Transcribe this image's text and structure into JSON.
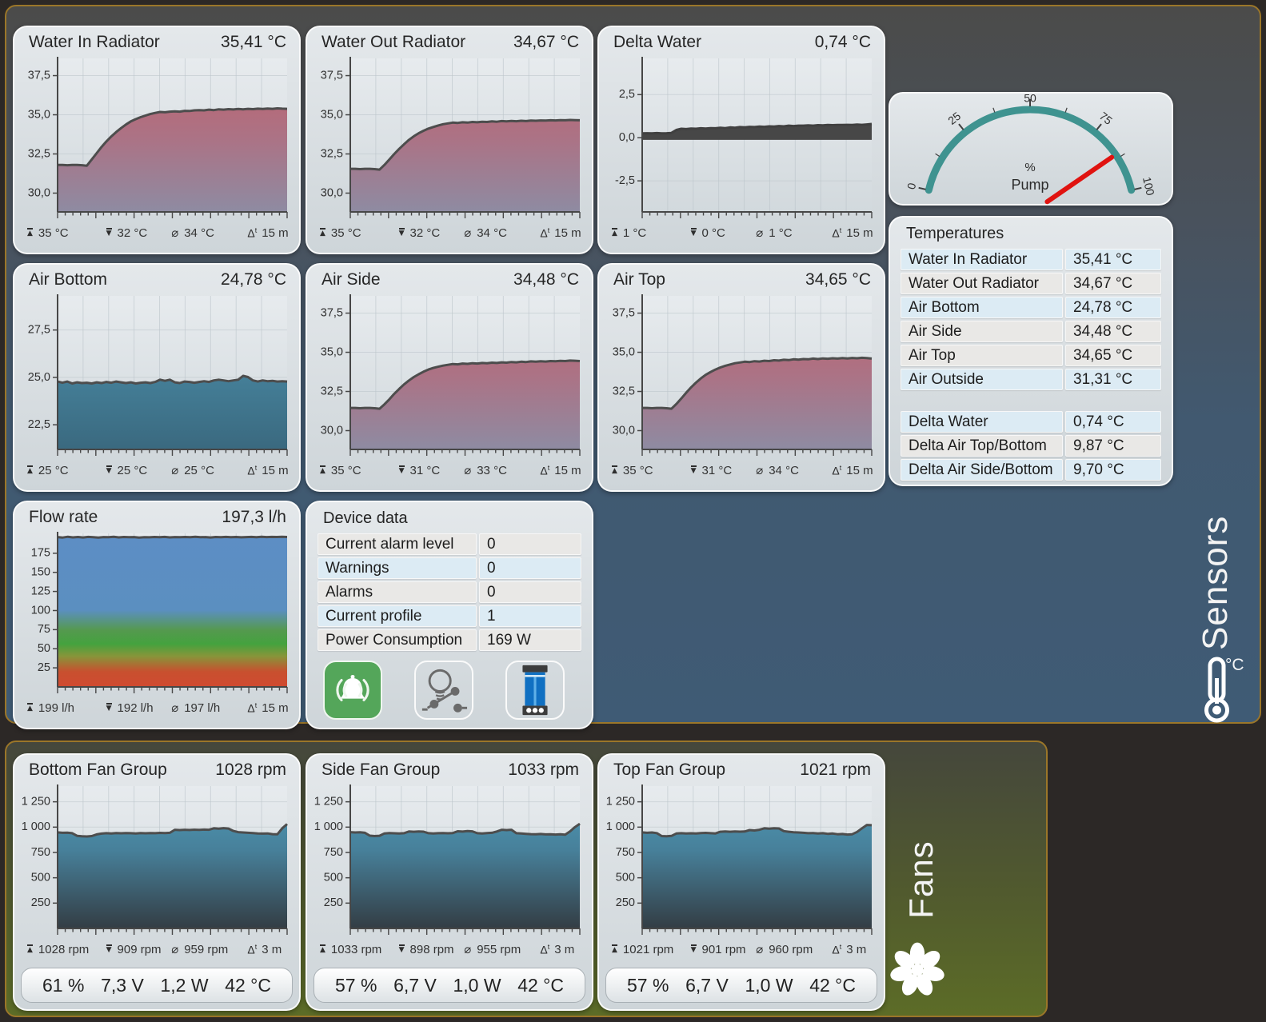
{
  "palettes": {
    "water": {
      "fill": [
        [
          0,
          "#c2606b"
        ],
        [
          0.55,
          "#aa7487"
        ],
        [
          1,
          "#8e8ba2"
        ]
      ],
      "stroke": "#4d4d4d"
    },
    "air": {
      "fill": [
        [
          0,
          "#5097b3"
        ],
        [
          1,
          "#3a697f"
        ]
      ],
      "stroke": "#4d4d4d"
    },
    "delta": {
      "fill": [
        [
          0,
          "#474747"
        ],
        [
          1,
          "#474747"
        ]
      ],
      "stroke": "#404040"
    },
    "flow": {
      "fill": [
        [
          0,
          "#5d8ec5"
        ],
        [
          0.5,
          "#5b8fc0"
        ],
        [
          0.63,
          "#55994f"
        ],
        [
          0.72,
          "#44a23e"
        ],
        [
          0.8,
          "#87953a"
        ],
        [
          0.9,
          "#c8502f"
        ],
        [
          1,
          "#d04a30"
        ]
      ],
      "stroke": "#4d4d4d"
    },
    "fan": {
      "fill": [
        [
          0,
          "#4f9cba"
        ],
        [
          0.45,
          "#47809a"
        ],
        [
          1,
          "#333d44"
        ]
      ],
      "stroke": "#4d4d4d"
    }
  },
  "sensors_section": {
    "section_label": "Sensors",
    "section_unit": "°C",
    "charts": [
      {
        "title": "Water In Radiator",
        "value": "35,41 °C",
        "type": "area",
        "palette": "water",
        "ylim": [
          28.8,
          38.6
        ],
        "yticks": [
          37.5,
          35.0,
          32.5,
          30.0
        ],
        "ytick_labels": [
          "37,5",
          "35,0",
          "32,5",
          "30,0"
        ],
        "stats": {
          "max": "35 °C",
          "min": "32 °C",
          "avg": "34 °C",
          "dt": "15 m"
        },
        "points": [
          31.8,
          31.8,
          31.78,
          31.8,
          31.8,
          31.78,
          31.75,
          32.15,
          32.55,
          32.95,
          33.3,
          33.62,
          33.9,
          34.15,
          34.38,
          34.58,
          34.72,
          34.85,
          34.95,
          35.05,
          35.12,
          35.18,
          35.16,
          35.2,
          35.22,
          35.2,
          35.25,
          35.24,
          35.28,
          35.3,
          35.28,
          35.33,
          35.3,
          35.35,
          35.33,
          35.36,
          35.34,
          35.37,
          35.35,
          35.38,
          35.36,
          35.39,
          35.37,
          35.4,
          35.38,
          35.41,
          35.39,
          35.38
        ]
      },
      {
        "title": "Water Out Radiator",
        "value": "34,67 °C",
        "type": "area",
        "palette": "water",
        "ylim": [
          28.8,
          38.6
        ],
        "yticks": [
          37.5,
          35.0,
          32.5,
          30.0
        ],
        "ytick_labels": [
          "37,5",
          "35,0",
          "32,5",
          "30,0"
        ],
        "stats": {
          "max": "35 °C",
          "min": "32 °C",
          "avg": "34 °C",
          "dt": "15 m"
        },
        "points": [
          31.55,
          31.55,
          31.53,
          31.55,
          31.55,
          31.53,
          31.5,
          31.8,
          32.15,
          32.5,
          32.82,
          33.12,
          33.4,
          33.63,
          33.82,
          33.98,
          34.12,
          34.22,
          34.32,
          34.4,
          34.45,
          34.5,
          34.48,
          34.52,
          34.5,
          34.54,
          34.52,
          34.56,
          34.54,
          34.58,
          34.56,
          34.6,
          34.58,
          34.61,
          34.59,
          34.62,
          34.6,
          34.63,
          34.62,
          34.64,
          34.63,
          34.65,
          34.64,
          34.66,
          34.65,
          34.67,
          34.66,
          34.65
        ]
      },
      {
        "title": "Delta Water",
        "value": "0,74 °C",
        "type": "area",
        "palette": "delta",
        "baseline": -0.12,
        "ylim": [
          -4.3,
          4.6
        ],
        "yticks": [
          2.5,
          0,
          -2.5
        ],
        "ytick_labels": [
          "2,5",
          "0,0",
          "-2,5"
        ],
        "stats": {
          "max": "1 °C",
          "min": "0 °C",
          "avg": "1 °C",
          "dt": "15 m"
        },
        "points": [
          0.25,
          0.26,
          0.25,
          0.27,
          0.25,
          0.26,
          0.28,
          0.45,
          0.52,
          0.5,
          0.53,
          0.52,
          0.55,
          0.53,
          0.56,
          0.55,
          0.58,
          0.56,
          0.6,
          0.58,
          0.62,
          0.6,
          0.63,
          0.62,
          0.65,
          0.63,
          0.66,
          0.65,
          0.68,
          0.66,
          0.7,
          0.68,
          0.7,
          0.7,
          0.72,
          0.7,
          0.73,
          0.72,
          0.74,
          0.73,
          0.74,
          0.74,
          0.75,
          0.74,
          0.76,
          0.75,
          0.77,
          0.8
        ]
      },
      {
        "title": "Air Bottom",
        "value": "24,78 °C",
        "type": "area",
        "palette": "air",
        "ylim": [
          21.2,
          29.3
        ],
        "yticks": [
          27.5,
          25.0,
          22.5
        ],
        "ytick_labels": [
          "27,5",
          "25,0",
          "22,5"
        ],
        "stats": {
          "max": "25 °C",
          "min": "25 °C",
          "avg": "25 °C",
          "dt": "15 m"
        },
        "points": [
          24.78,
          24.72,
          24.78,
          24.68,
          24.74,
          24.7,
          24.72,
          24.68,
          24.74,
          24.7,
          24.76,
          24.72,
          24.78,
          24.74,
          24.7,
          24.74,
          24.68,
          24.72,
          24.74,
          24.7,
          24.76,
          24.88,
          24.82,
          24.88,
          24.74,
          24.7,
          24.78,
          24.76,
          24.72,
          24.76,
          24.8,
          24.76,
          24.84,
          24.88,
          24.84,
          24.8,
          24.84,
          24.88,
          25.08,
          25.02,
          24.84,
          24.78,
          24.84,
          24.8,
          24.82,
          24.78,
          24.8,
          24.78
        ]
      },
      {
        "title": "Air Side",
        "value": "34,48 °C",
        "type": "area",
        "palette": "water",
        "ylim": [
          28.8,
          38.6
        ],
        "yticks": [
          37.5,
          35.0,
          32.5,
          30.0
        ],
        "ytick_labels": [
          "37,5",
          "35,0",
          "32,5",
          "30,0"
        ],
        "stats": {
          "max": "35 °C",
          "min": "31 °C",
          "avg": "33 °C",
          "dt": "15 m"
        },
        "points": [
          31.45,
          31.45,
          31.43,
          31.45,
          31.45,
          31.43,
          31.4,
          31.68,
          32.0,
          32.35,
          32.66,
          32.95,
          33.2,
          33.42,
          33.6,
          33.76,
          33.9,
          34.0,
          34.08,
          34.15,
          34.2,
          34.25,
          34.23,
          34.28,
          34.26,
          34.3,
          34.28,
          34.32,
          34.3,
          34.34,
          34.32,
          34.36,
          34.34,
          34.38,
          34.36,
          34.4,
          34.38,
          34.42,
          34.4,
          34.43,
          34.41,
          34.44,
          34.43,
          34.45,
          34.44,
          34.47,
          34.46,
          34.44
        ]
      },
      {
        "title": "Air Top",
        "value": "34,65 °C",
        "type": "area",
        "palette": "water",
        "ylim": [
          28.8,
          38.6
        ],
        "yticks": [
          37.5,
          35.0,
          32.5,
          30.0
        ],
        "ytick_labels": [
          "37,5",
          "35,0",
          "32,5",
          "30,0"
        ],
        "stats": {
          "max": "35 °C",
          "min": "31 °C",
          "avg": "34 °C",
          "dt": "15 m"
        },
        "points": [
          31.45,
          31.45,
          31.43,
          31.45,
          31.45,
          31.43,
          31.4,
          31.7,
          32.05,
          32.42,
          32.76,
          33.06,
          33.33,
          33.56,
          33.74,
          33.9,
          34.03,
          34.14,
          34.22,
          34.3,
          34.35,
          34.4,
          34.38,
          34.43,
          34.41,
          34.46,
          34.44,
          34.49,
          34.47,
          34.52,
          34.5,
          34.55,
          34.53,
          34.57,
          34.55,
          34.6,
          34.57,
          34.61,
          34.59,
          34.62,
          34.6,
          34.63,
          34.61,
          34.64,
          34.62,
          34.65,
          34.63,
          34.6
        ]
      },
      {
        "title": "Flow rate",
        "value": "197,3 l/h",
        "type": "area",
        "palette": "flow",
        "ylim": [
          0,
          201
        ],
        "yticks": [
          175,
          150,
          125,
          100,
          75,
          50,
          25
        ],
        "ytick_labels": [
          "175",
          "150",
          "125",
          "100",
          "75",
          "50",
          "25"
        ],
        "stats": {
          "max": "199 l/h",
          "min": "192 l/h",
          "avg": "197 l/h",
          "dt": "15 m"
        },
        "points": [
          196.2,
          195.6,
          196.6,
          195.8,
          196.3,
          195.7,
          196.4,
          196.0,
          195.4,
          196.2,
          196.0,
          196.6,
          195.8,
          196.3,
          196.0,
          196.2,
          195.6,
          196.1,
          195.9,
          196.3,
          196.1,
          196.4,
          195.8,
          196.2,
          196.0,
          196.3,
          196.1,
          196.5,
          196.0,
          196.2,
          195.7,
          196.3,
          196.0,
          196.4,
          196.1,
          196.3,
          195.9,
          196.2,
          196.4,
          196.1,
          196.5,
          196.2,
          196.4,
          196.3,
          196.5,
          196.3
        ]
      }
    ],
    "gauge": {
      "center_label_line1": "%",
      "center_label_line2": "Pump",
      "tick_labels": [
        "0",
        "25",
        "50",
        "75",
        "100"
      ],
      "value_pct": 86,
      "arc_color": "#3f9390",
      "needle_color": "#e01310"
    },
    "temperatures": {
      "title": "Temperatures",
      "rows": [
        {
          "label": "Water In Radiator",
          "value": "35,41 °C",
          "tone": "blue"
        },
        {
          "label": "Water Out Radiator",
          "value": "34,67 °C",
          "tone": "gray"
        },
        {
          "label": "Air Bottom",
          "value": "24,78 °C",
          "tone": "blue"
        },
        {
          "label": "Air Side",
          "value": "34,48 °C",
          "tone": "gray"
        },
        {
          "label": "Air Top",
          "value": "34,65 °C",
          "tone": "gray"
        },
        {
          "label": "Air Outside",
          "value": "31,31 °C",
          "tone": "blue"
        }
      ],
      "delta_rows": [
        {
          "label": "Delta Water",
          "value": "0,74 °C",
          "tone": "blue"
        },
        {
          "label": "Delta Air Top/Bottom",
          "value": "9,87 °C",
          "tone": "gray"
        },
        {
          "label": "Delta Air Side/Bottom",
          "value": "9,70 °C",
          "tone": "blue"
        }
      ]
    },
    "device": {
      "title": "Device data",
      "rows": [
        {
          "label": "Current alarm level",
          "value": "0",
          "tone": "gray"
        },
        {
          "label": "Warnings",
          "value": "0",
          "tone": "blue"
        },
        {
          "label": "Alarms",
          "value": "0",
          "tone": "gray"
        },
        {
          "label": "Current profile",
          "value": "1",
          "tone": "blue"
        },
        {
          "label": "Power Consumption",
          "value": "169 W",
          "tone": "gray"
        }
      ],
      "buttons": [
        {
          "name": "alarm",
          "color": "#54a65a"
        },
        {
          "name": "lighting",
          "color": "#6a6a6a"
        },
        {
          "name": "fill-level",
          "color": "#1070c2"
        }
      ]
    }
  },
  "fans_section": {
    "section_label": "Fans",
    "charts": [
      {
        "title": "Bottom Fan Group",
        "value": "1028 rpm",
        "type": "area",
        "palette": "fan",
        "ylim": [
          0,
          1405
        ],
        "yticks": [
          1250,
          1000,
          750,
          500,
          250
        ],
        "ytick_labels": [
          "1 250",
          "1 000",
          "750",
          "500",
          "250"
        ],
        "stats": {
          "max": "1028 rpm",
          "min": "909 rpm",
          "avg": "959 rpm",
          "dt": "3 m"
        },
        "summary": [
          "61 %",
          "7,3 V",
          "1,2 W",
          "42 °C"
        ],
        "points": [
          948,
          944,
          946,
          940,
          914,
          910,
          908,
          912,
          928,
          936,
          940,
          938,
          941,
          939,
          942,
          940,
          938,
          941,
          939,
          942,
          940,
          943,
          941,
          944,
          974,
          971,
          974,
          972,
          975,
          973,
          976,
          974,
          988,
          984,
          990,
          986,
          962,
          950,
          947,
          944,
          941,
          938,
          936,
          938,
          931,
          929,
          988,
          1030
        ]
      },
      {
        "title": "Side Fan Group",
        "value": "1033 rpm",
        "type": "area",
        "palette": "fan",
        "ylim": [
          0,
          1405
        ],
        "yticks": [
          1250,
          1000,
          750,
          500,
          250
        ],
        "ytick_labels": [
          "1 250",
          "1 000",
          "750",
          "500",
          "250"
        ],
        "stats": {
          "max": "1033 rpm",
          "min": "898 rpm",
          "avg": "955 rpm",
          "dt": "3 m"
        },
        "summary": [
          "57 %",
          "6,7 V",
          "1,0 W",
          "42 °C"
        ],
        "points": [
          950,
          947,
          949,
          944,
          916,
          912,
          915,
          938,
          941,
          939,
          937,
          940,
          957,
          954,
          957,
          955,
          940,
          937,
          940,
          942,
          939,
          942,
          959,
          956,
          961,
          958,
          940,
          937,
          941,
          944,
          957,
          974,
          971,
          974,
          940,
          937,
          934,
          931,
          929,
          932,
          928,
          930,
          927,
          929,
          926,
          958,
          1000,
          1033
        ]
      },
      {
        "title": "Top Fan Group",
        "value": "1021 rpm",
        "type": "area",
        "palette": "fan",
        "ylim": [
          0,
          1405
        ],
        "yticks": [
          1250,
          1000,
          750,
          500,
          250
        ],
        "ytick_labels": [
          "1 250",
          "1 000",
          "750",
          "500",
          "250"
        ],
        "stats": {
          "max": "1021 rpm",
          "min": "901 rpm",
          "avg": "960 rpm",
          "dt": "3 m"
        },
        "summary": [
          "57 %",
          "6,7 V",
          "1,0 W",
          "42 °C"
        ],
        "points": [
          948,
          944,
          947,
          941,
          912,
          909,
          913,
          937,
          940,
          937,
          939,
          937,
          941,
          943,
          940,
          938,
          954,
          957,
          954,
          957,
          955,
          957,
          971,
          967,
          974,
          988,
          984,
          989,
          987,
          961,
          954,
          949,
          947,
          944,
          940,
          942,
          937,
          940,
          934,
          937,
          930,
          932,
          927,
          930,
          953,
          988,
          1021,
          1019
        ]
      }
    ]
  }
}
